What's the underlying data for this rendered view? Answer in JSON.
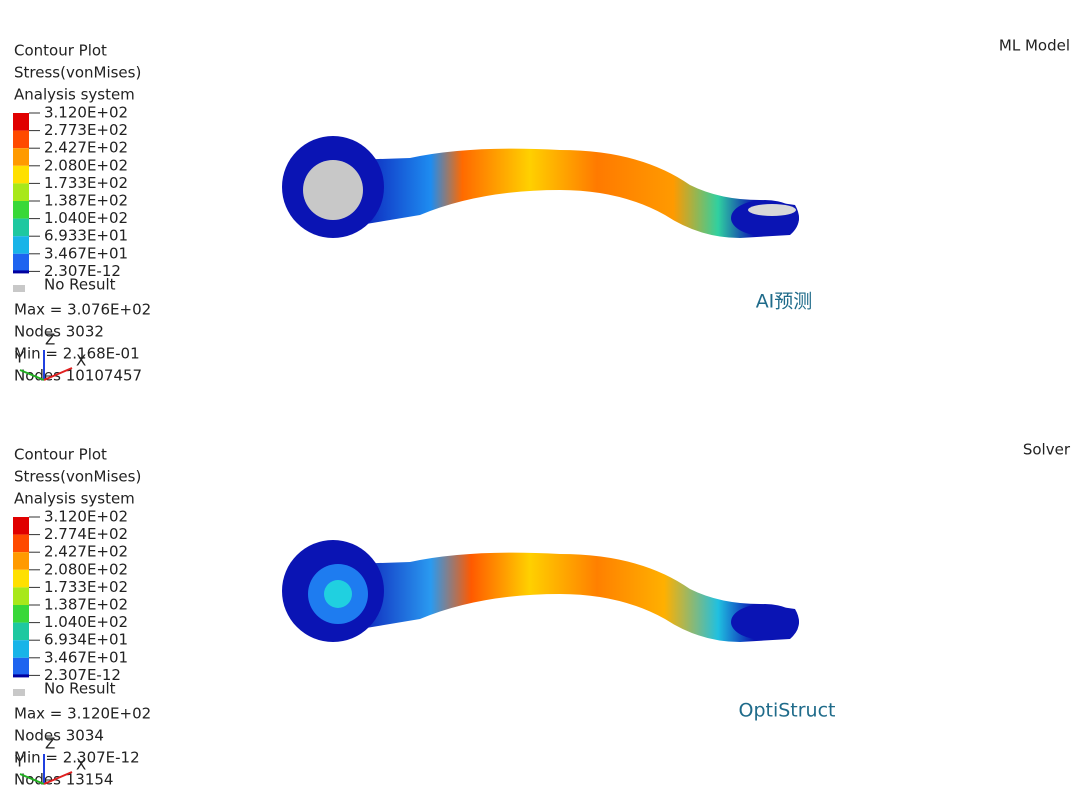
{
  "panels": [
    {
      "model_label": "ML Model",
      "caption": "AI预测",
      "legend": {
        "title": [
          "Contour Plot",
          "Stress(vonMises)",
          "Analysis system"
        ],
        "levels": [
          "3.120E+02",
          "2.773E+02",
          "2.427E+02",
          "2.080E+02",
          "1.733E+02",
          "1.387E+02",
          "1.040E+02",
          "6.933E+01",
          "3.467E+01",
          "2.307E-12"
        ],
        "no_result": "No Result"
      },
      "stats": [
        "Max = 3.076E+02",
        "Nodes 3032",
        "Min = 2.168E-01",
        "Nodes 10107457"
      ],
      "triad": {
        "z": "Z",
        "y": "Y",
        "x": "X"
      }
    },
    {
      "model_label": "Solver",
      "caption": "OptiStruct",
      "legend": {
        "title": [
          "Contour Plot",
          "Stress(vonMises)",
          "Analysis system"
        ],
        "levels": [
          "3.120E+02",
          "2.774E+02",
          "2.427E+02",
          "2.080E+02",
          "1.733E+02",
          "1.387E+02",
          "1.040E+02",
          "6.934E+01",
          "3.467E+01",
          "2.307E-12"
        ],
        "no_result": "No Result"
      },
      "stats": [
        "Max = 3.120E+02",
        "Nodes 3034",
        "Min = 2.307E-12",
        "Nodes 13154"
      ],
      "triad": {
        "z": "Z",
        "y": "Y",
        "x": "X"
      }
    }
  ]
}
